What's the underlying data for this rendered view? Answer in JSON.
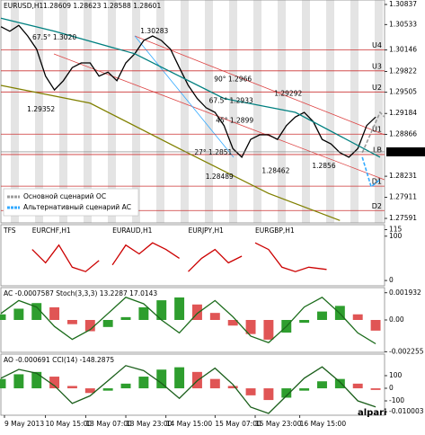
{
  "chart_data": [
    {
      "type": "line",
      "title": "EURUSD,H1",
      "subtitle": "1.28609 1.28623 1.28588 1.28601",
      "xlim": [
        0,
        43
      ],
      "ylim": [
        1.27523,
        1.30905
      ],
      "yticks": [
        1.30837,
        1.30533,
        1.30146,
        1.29822,
        1.29505,
        1.29184,
        1.28866,
        1.28231,
        1.27911,
        1.27591
      ],
      "current_price": 1.28601,
      "legend": "lower left",
      "series": [
        {
          "color": "#000000",
          "values": [
            1.305,
            1.3043,
            1.3052,
            1.3036,
            1.3016,
            1.2975,
            1.2954,
            1.2968,
            1.2988,
            1.2995,
            1.2995,
            1.2975,
            1.2981,
            1.2968,
            1.2995,
            1.3009,
            1.3029,
            1.3036,
            1.3029,
            1.3016,
            1.2988,
            1.2961,
            1.2941,
            1.2927,
            1.292,
            1.29,
            1.2865,
            1.2852,
            1.2879,
            1.2886,
            1.2886,
            1.2879,
            1.29,
            1.2913,
            1.292,
            1.2906,
            1.2879,
            1.2872,
            1.2859,
            1.2852,
            1.2865,
            1.29,
            1.2913
          ]
        },
        {
          "color": "#008080",
          "x": [
            0,
            6,
            15,
            25,
            33,
            42.5
          ],
          "values": [
            1.3063,
            1.3043,
            1.3009,
            1.2941,
            1.292,
            1.2852
          ]
        },
        {
          "color": "#808000",
          "x": [
            0,
            10,
            20,
            30,
            38
          ],
          "values": [
            1.2961,
            1.2934,
            1.2865,
            1.2797,
            1.2756
          ]
        },
        {
          "name": "Основной сценарий ОС",
          "color": "#9a9a9a",
          "dash": true,
          "x": [
            40.5,
            42.5,
            43
          ],
          "values": [
            1.2859,
            1.292,
            1.2913
          ]
        },
        {
          "name": "Альтернативный сценарий АС",
          "color": "#33aaff",
          "dash": true,
          "x": [
            40.5,
            41.5,
            42.5
          ],
          "values": [
            1.2852,
            1.2807,
            1.2818
          ]
        }
      ],
      "levels": [
        {
          "label": "U4",
          "value": 1.3015
        },
        {
          "label": "U3",
          "value": 1.2983
        },
        {
          "label": "U2",
          "value": 1.2951
        },
        {
          "label": "U1",
          "value": 1.2887
        },
        {
          "label": "LB",
          "value": 1.2856
        },
        {
          "label": "D1",
          "value": 1.2808
        },
        {
          "label": "D2",
          "value": 1.2771
        }
      ],
      "level_color": "#cc3333",
      "annotations": [
        {
          "text": "67.5° 1.3020",
          "x": 6,
          "y": 1.3033
        },
        {
          "text": "1.30283",
          "x": 17.2,
          "y": 1.3043
        },
        {
          "text": "1.29352",
          "x": 4.5,
          "y": 1.2924
        },
        {
          "text": "90° 1.2966",
          "x": 26,
          "y": 1.297
        },
        {
          "text": "67.5° 1.2933",
          "x": 25.8,
          "y": 1.2937
        },
        {
          "text": "1.29292",
          "x": 32.2,
          "y": 1.2948
        },
        {
          "text": "45° 1.2899",
          "x": 26.2,
          "y": 1.2907
        },
        {
          "text": "27° 1.2851",
          "x": 23.8,
          "y": 1.2859
        },
        {
          "text": "1.28489",
          "x": 24.5,
          "y": 1.2822
        },
        {
          "text": "1.28462",
          "x": 30.8,
          "y": 1.2831
        },
        {
          "text": "1.2856",
          "x": 36.2,
          "y": 1.2838
        }
      ]
    },
    {
      "type": "line",
      "title": "TFS",
      "xlim": [
        0,
        43
      ],
      "ylim": [
        -12,
        126
      ],
      "yticks": [
        115,
        100,
        0
      ],
      "series": [
        {
          "name": "EURCHF,H1",
          "color": "#cc0000",
          "x": [
            3.5,
            5,
            6.5,
            8,
            9.5,
            11
          ],
          "values": [
            70,
            40,
            80,
            30,
            20,
            45
          ]
        },
        {
          "name": "EURAUD,H1",
          "color": "#cc0000",
          "x": [
            12.5,
            14,
            15.5,
            17,
            18.5,
            20
          ],
          "values": [
            35,
            80,
            60,
            85,
            70,
            50
          ]
        },
        {
          "name": "EURJPY,H1",
          "color": "#cc0000",
          "x": [
            21,
            22.5,
            24,
            25.5,
            27
          ],
          "values": [
            20,
            50,
            70,
            40,
            55
          ]
        },
        {
          "name": "EURGBP,H1",
          "color": "#cc0000",
          "x": [
            28.5,
            30,
            31.5,
            33,
            34.5,
            36.5
          ],
          "values": [
            85,
            70,
            30,
            20,
            30,
            25
          ]
        }
      ]
    },
    {
      "type": "bar",
      "title": "AC -0.0007587 Stoch(3,3,3) 13.2287 17.0143",
      "xlim": [
        0,
        43
      ],
      "ylim": [
        -0.0023,
        0.0023
      ],
      "yticks": [
        0.001932,
        {
          "value": 0,
          "label": "0.00"
        },
        -0.002255
      ],
      "y2lim": [
        0,
        100
      ],
      "series": [
        {
          "up_color": "#2e9e2e",
          "down_color": "#e05555",
          "x": [
            0,
            2,
            4,
            6,
            8,
            10,
            12,
            14,
            16,
            18,
            20,
            22,
            24,
            26,
            28,
            30,
            32,
            34,
            36,
            38,
            40,
            42
          ],
          "values": [
            0.0004,
            0.0008,
            0.0012,
            0.0009,
            -0.0003,
            -0.0008,
            -0.0005,
            0.0002,
            0.0009,
            0.0014,
            0.0016,
            0.0011,
            0.0005,
            -0.0004,
            -0.001,
            -0.0014,
            -0.0009,
            -0.0002,
            0.0006,
            0.001,
            0.0004,
            -0.0007587
          ]
        },
        {
          "type": "line",
          "axis": "y2",
          "color": "#1a6b1a",
          "x": [
            0,
            2,
            4,
            6,
            8,
            10,
            12,
            14,
            16,
            18,
            20,
            22,
            24,
            26,
            28,
            30,
            32,
            34,
            36,
            38,
            40,
            42
          ],
          "values": [
            60,
            80,
            70,
            40,
            20,
            35,
            60,
            85,
            75,
            50,
            30,
            60,
            80,
            55,
            25,
            15,
            40,
            70,
            85,
            60,
            30,
            13.2287
          ]
        }
      ]
    },
    {
      "type": "bar",
      "title": "AO -0.000691 CCI(14) -148.2875",
      "xlim": [
        0,
        43
      ],
      "ylim": [
        -0.0115,
        0.01462
      ],
      "yticks": [
        -0.010003
      ],
      "y2lim": [
        -214,
        271
      ],
      "y2ticks": [
        100,
        0,
        -100
      ],
      "xticks": [
        {
          "value": 0.4,
          "label": "9 May 2013"
        },
        {
          "value": 5,
          "label": "10 May 15:00"
        },
        {
          "value": 9.5,
          "label": "13 May 07:00"
        },
        {
          "value": 14,
          "label": "13 May 23:00"
        },
        {
          "value": 18.5,
          "label": "14 May 15:00"
        },
        {
          "value": 24,
          "label": "15 May 07:00"
        },
        {
          "value": 28.5,
          "label": "15 May 23:00"
        },
        {
          "value": 33.5,
          "label": "16 May 15:00"
        }
      ],
      "series": [
        {
          "up_color": "#2e9e2e",
          "down_color": "#e05555",
          "x": [
            0,
            2,
            4,
            6,
            8,
            10,
            12,
            14,
            16,
            18,
            20,
            22,
            24,
            26,
            28,
            30,
            32,
            34,
            36,
            38,
            40,
            42
          ],
          "values": [
            0.004,
            0.006,
            0.007,
            0.005,
            0.001,
            -0.002,
            -0.001,
            0.002,
            0.005,
            0.008,
            0.009,
            0.007,
            0.004,
            0.001,
            -0.003,
            -0.005,
            -0.004,
            -0.001,
            0.003,
            0.004,
            0.002,
            -0.000691
          ]
        },
        {
          "type": "line",
          "axis": "y2",
          "color": "#1a5e1a",
          "x": [
            0,
            2,
            4,
            6,
            8,
            10,
            12,
            14,
            16,
            18,
            20,
            22,
            24,
            26,
            28,
            30,
            32,
            34,
            36,
            38,
            40,
            42
          ],
          "values": [
            80,
            150,
            120,
            20,
            -120,
            -60,
            60,
            180,
            140,
            40,
            -80,
            60,
            160,
            30,
            -150,
            -200,
            -60,
            80,
            170,
            50,
            -100,
            -148.2875
          ]
        }
      ]
    }
  ],
  "logo": "alpari"
}
